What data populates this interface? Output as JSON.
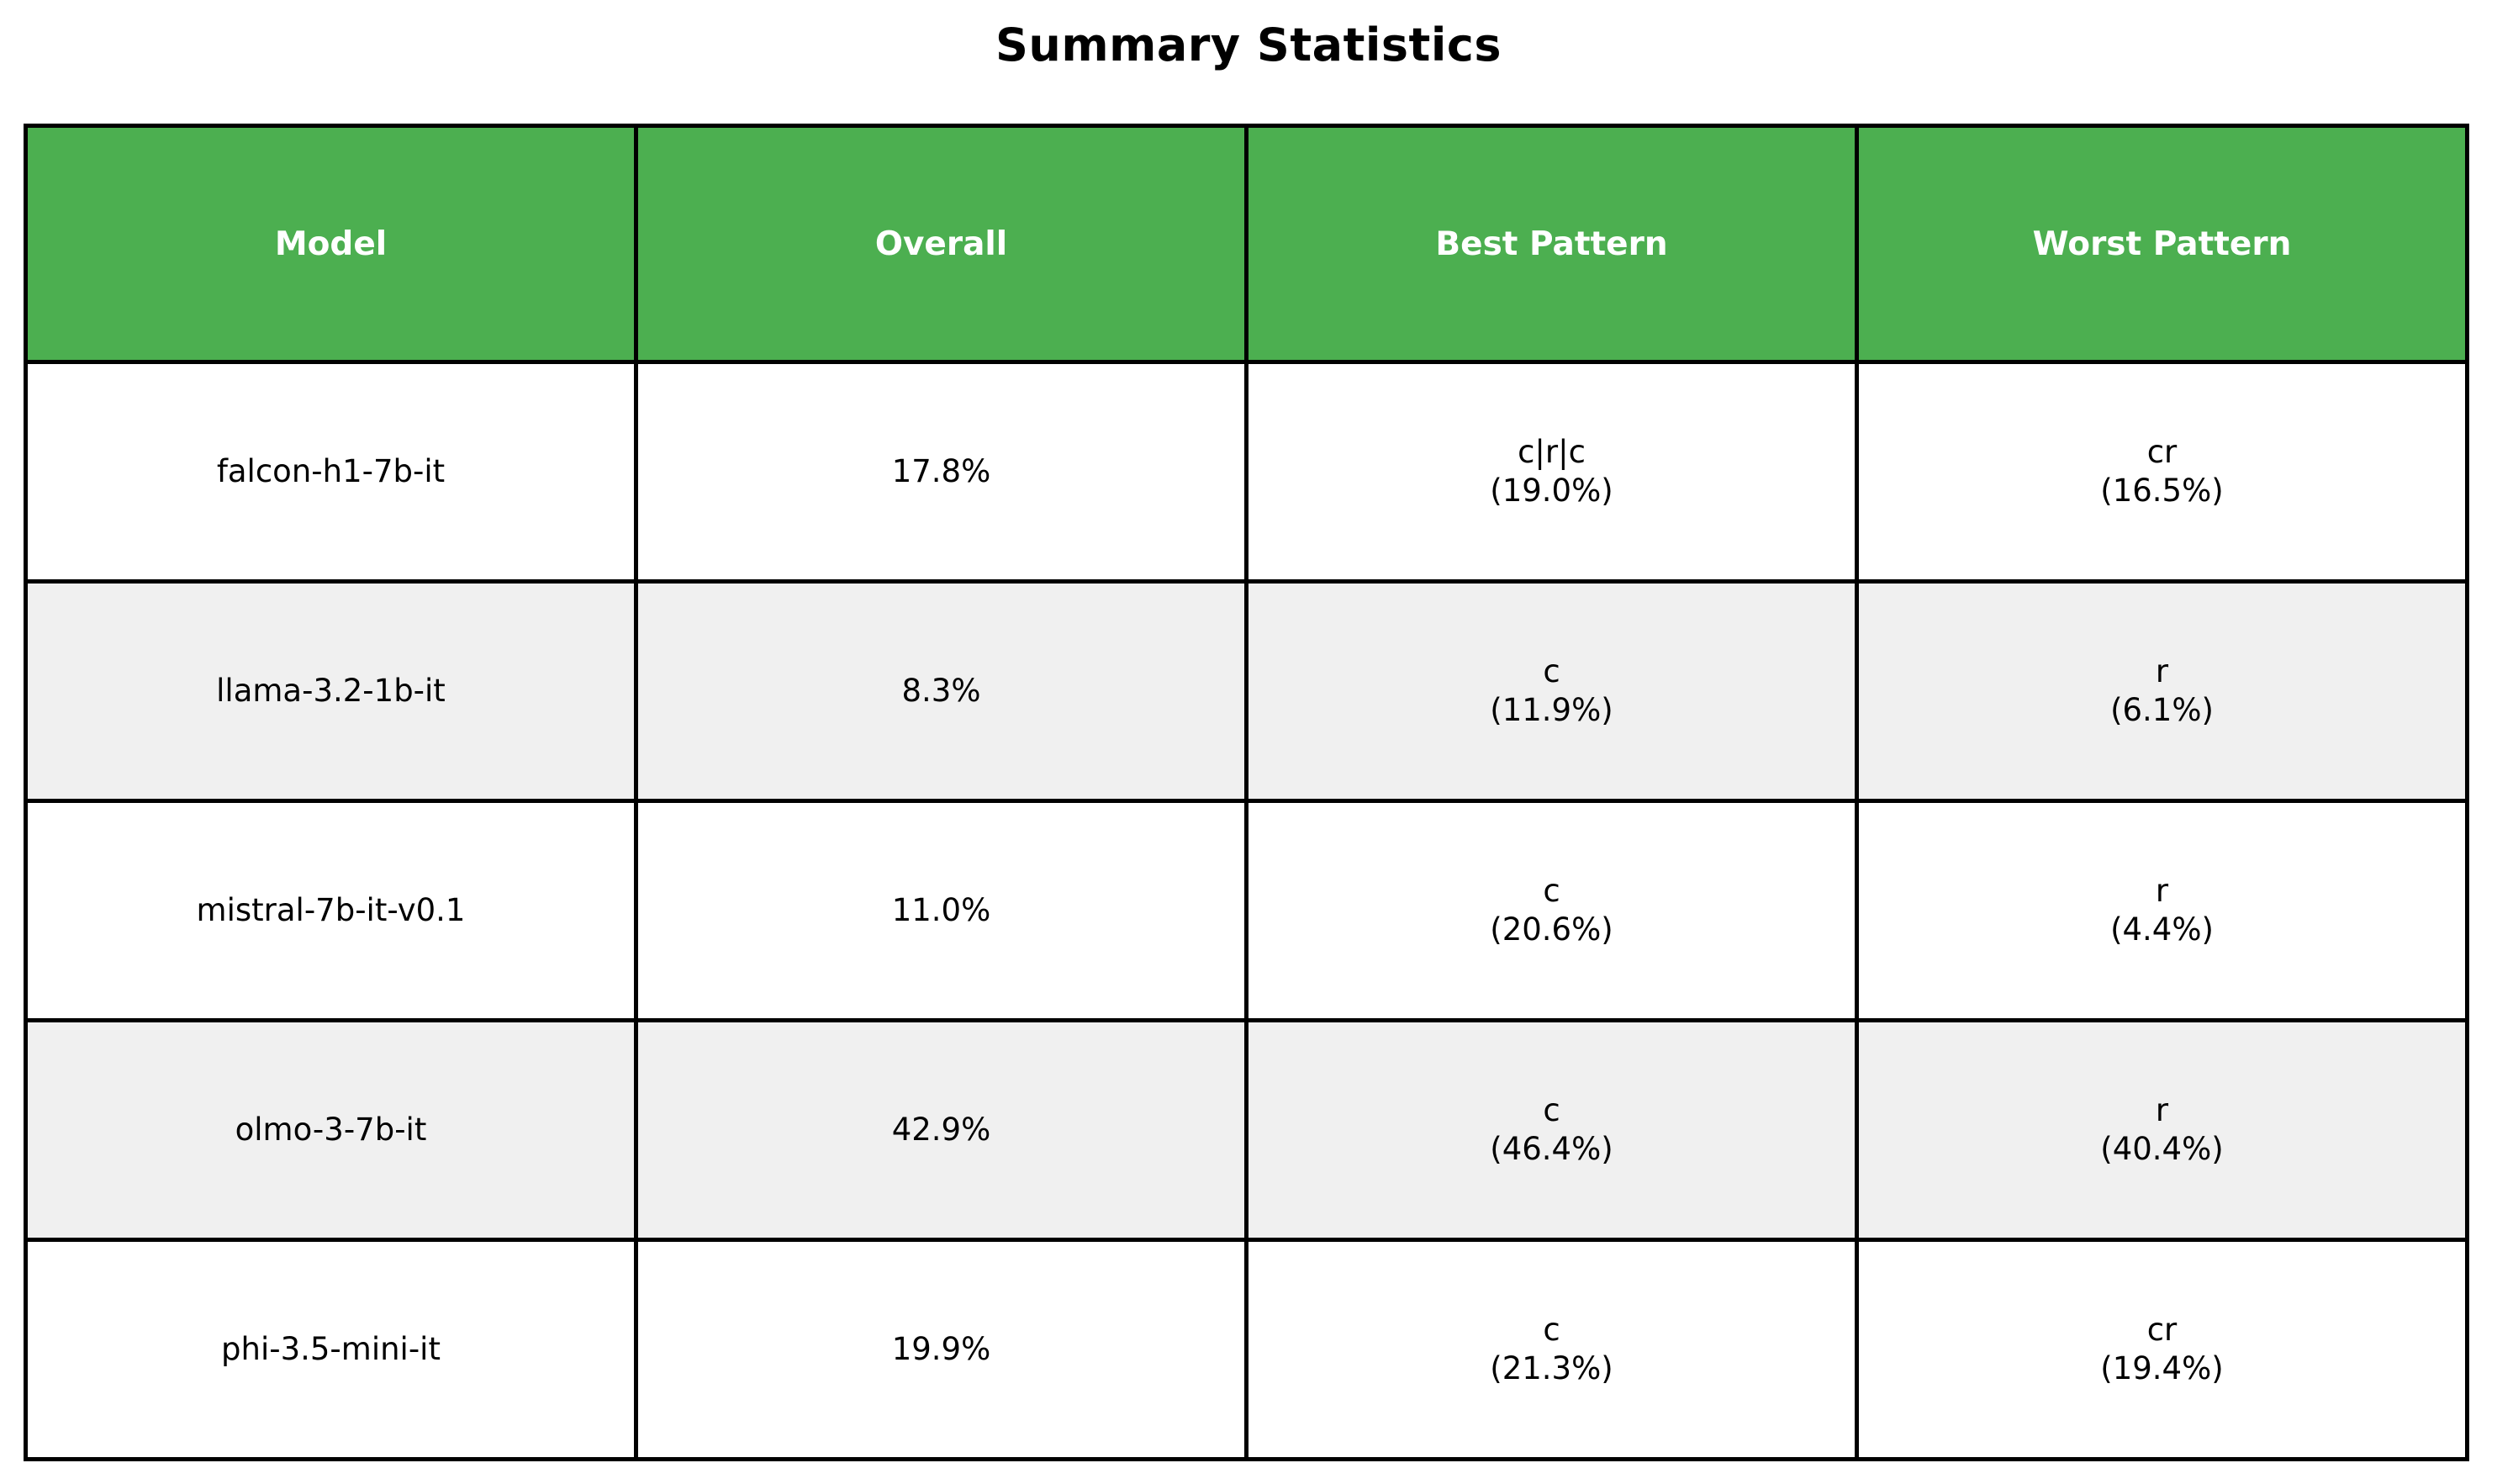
{
  "title": "Summary Statistics",
  "colors": {
    "header_bg": "#4CAF50",
    "header_text": "#ffffff",
    "row_bg": "#ffffff",
    "row_alt_bg": "#f0f0f0",
    "border": "#000000",
    "cell_text": "#000000"
  },
  "table": {
    "headers": [
      "Model",
      "Overall",
      "Best Pattern",
      "Worst Pattern"
    ],
    "rows": [
      {
        "model": "falcon-h1-7b-it",
        "overall": "17.8%",
        "best": {
          "pattern": "c|r|c",
          "pct": "(19.0%)"
        },
        "worst": {
          "pattern": "cr",
          "pct": "(16.5%)"
        }
      },
      {
        "model": "llama-3.2-1b-it",
        "overall": "8.3%",
        "best": {
          "pattern": "c",
          "pct": "(11.9%)"
        },
        "worst": {
          "pattern": "r",
          "pct": "(6.1%)"
        }
      },
      {
        "model": "mistral-7b-it-v0.1",
        "overall": "11.0%",
        "best": {
          "pattern": "c",
          "pct": "(20.6%)"
        },
        "worst": {
          "pattern": "r",
          "pct": "(4.4%)"
        }
      },
      {
        "model": "olmo-3-7b-it",
        "overall": "42.9%",
        "best": {
          "pattern": "c",
          "pct": "(46.4%)"
        },
        "worst": {
          "pattern": "r",
          "pct": "(40.4%)"
        }
      },
      {
        "model": "phi-3.5-mini-it",
        "overall": "19.9%",
        "best": {
          "pattern": "c",
          "pct": "(21.3%)"
        },
        "worst": {
          "pattern": "cr",
          "pct": "(19.4%)"
        }
      }
    ]
  },
  "chart_data": {
    "type": "table",
    "title": "Summary Statistics",
    "columns": [
      "Model",
      "Overall",
      "Best Pattern",
      "Worst Pattern"
    ],
    "rows": [
      [
        "falcon-h1-7b-it",
        "17.8%",
        "c|r|c (19.0%)",
        "cr (16.5%)"
      ],
      [
        "llama-3.2-1b-it",
        "8.3%",
        "c (11.9%)",
        "r (6.1%)"
      ],
      [
        "mistral-7b-it-v0.1",
        "11.0%",
        "c (20.6%)",
        "r (4.4%)"
      ],
      [
        "olmo-3-7b-it",
        "42.9%",
        "c (46.4%)",
        "r (40.4%)"
      ],
      [
        "phi-3.5-mini-it",
        "19.9%",
        "c (21.3%)",
        "cr (19.4%)"
      ]
    ],
    "layout": {
      "header_fill": "#4CAF50",
      "alternating_row_fill": "#f0f0f0",
      "grid": true
    }
  }
}
